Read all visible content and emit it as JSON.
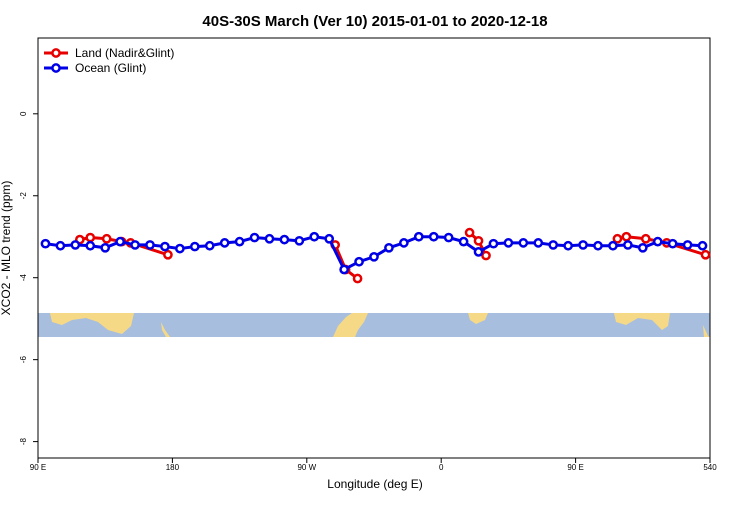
{
  "chart_data": {
    "type": "line",
    "title": "40S-30S March (Ver 10)   2015-01-01 to 2020-12-18",
    "x_label": "Longitude (deg E)",
    "y_label": "XCO2 - MLO trend (ppm)",
    "xlim": [
      90,
      540
    ],
    "ylim": [
      -8.4,
      1.85
    ],
    "xticks": [
      {
        "value": 90,
        "label": "90 E"
      },
      180,
      {
        "value": 270,
        "label": "90 W"
      },
      {
        "value": 360,
        "label": "0"
      },
      {
        "value": 450,
        "label": "90 E"
      },
      540
    ],
    "yticks": [
      -8,
      -6,
      -4,
      -2,
      0
    ],
    "legend": "topleft",
    "series": [
      {
        "name": "Land (Nadir&Glint)",
        "color": "#e60000",
        "x": [
          118,
          125,
          136,
          146,
          152,
          177,
          null,
          289,
          296,
          304,
          null,
          379,
          385,
          390,
          null,
          478,
          484,
          497,
          511,
          537
        ],
        "values": [
          -3.07,
          -3.02,
          -3.05,
          -3.12,
          -3.15,
          -3.44,
          null,
          -3.2,
          -3.8,
          -4.02,
          null,
          -2.9,
          -3.1,
          -3.46,
          null,
          -3.05,
          -3.0,
          -3.05,
          -3.15,
          -3.44
        ]
      },
      {
        "name": "Ocean (Glint)",
        "color": "#0000e6",
        "x": [
          95,
          105,
          115,
          125,
          135,
          145,
          155,
          165,
          175,
          185,
          195,
          205,
          215,
          225,
          235,
          245,
          255,
          265,
          275,
          285,
          295,
          305,
          315,
          325,
          335,
          345,
          355,
          365,
          375,
          385,
          395,
          405,
          415,
          425,
          435,
          445,
          455,
          465,
          475,
          485,
          495,
          505,
          515,
          525,
          535
        ],
        "values": [
          -3.17,
          -3.22,
          -3.2,
          -3.22,
          -3.27,
          -3.12,
          -3.2,
          -3.2,
          -3.24,
          -3.29,
          -3.24,
          -3.22,
          -3.15,
          -3.12,
          -3.02,
          -3.05,
          -3.07,
          -3.1,
          -3.0,
          -3.05,
          -3.8,
          -3.61,
          -3.49,
          -3.27,
          -3.15,
          -3.0,
          -3.0,
          -3.02,
          -3.12,
          -3.37,
          -3.17,
          -3.15,
          -3.15,
          -3.15,
          -3.2,
          -3.22,
          -3.2,
          -3.22,
          -3.22,
          -3.2,
          -3.27,
          -3.12,
          -3.17,
          -3.2,
          -3.22
        ]
      }
    ]
  }
}
